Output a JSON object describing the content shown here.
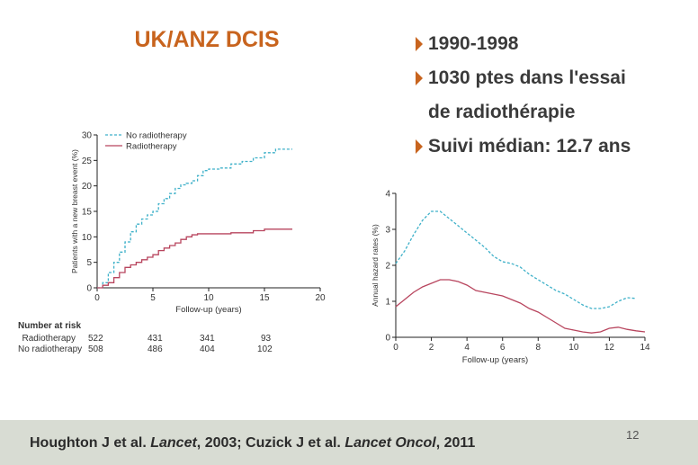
{
  "slide": {
    "title": "UK/ANZ DCIS",
    "bullets": [
      {
        "line1": "1990-1998",
        "line2": ""
      },
      {
        "line1": "1030 ptes dans l'essai",
        "line2": "de radiothérapie"
      },
      {
        "line1": "Suivi médian: 12.7 ans",
        "line2": ""
      }
    ],
    "accent_color": "#c8641e",
    "page_number": "12",
    "citation": {
      "part1": "Houghton J et al. ",
      "journal1": "Lancet",
      "part2": ", 2003; Cuzick J et al. ",
      "journal2": "Lancet Oncol",
      "part3": ", 2011"
    }
  },
  "risk_table": {
    "title": "Number at risk",
    "rows": [
      {
        "label": "Radiotherapy",
        "values": [
          "522",
          "431",
          "341",
          "93"
        ]
      },
      {
        "label": "No radiotherapy",
        "values": [
          "508",
          "486",
          "404",
          "102"
        ]
      }
    ]
  },
  "chart_data": [
    {
      "type": "line",
      "xlabel": "Follow-up (years)",
      "ylabel": "Patients with a new breast event (%)",
      "xlim": [
        0,
        20
      ],
      "ylim": [
        0,
        30
      ],
      "xticks": [
        "0",
        "5",
        "10",
        "15",
        "20"
      ],
      "yticks": [
        "0",
        "5",
        "10",
        "15",
        "20",
        "25",
        "30"
      ],
      "legend_position": "top-left",
      "series": [
        {
          "name": "No radiotherapy",
          "color": "#3fb1c9",
          "style": "dashed",
          "x": [
            0,
            0.5,
            1,
            1.5,
            2,
            2.5,
            3,
            3.5,
            4,
            4.5,
            5,
            5.5,
            6,
            6.5,
            7,
            7.5,
            8,
            8.5,
            9,
            9.5,
            10,
            11,
            12,
            13,
            14,
            15,
            16,
            17.5
          ],
          "y": [
            0,
            1,
            3,
            5,
            7,
            9,
            11,
            12.5,
            13.5,
            14.3,
            15,
            16.5,
            17.5,
            18.5,
            19.5,
            20.2,
            20.5,
            21,
            22,
            23,
            23.3,
            23.5,
            24.3,
            24.8,
            25.5,
            26.5,
            27.2,
            27.2
          ]
        },
        {
          "name": "Radiotherapy",
          "color": "#b8455e",
          "style": "solid",
          "x": [
            0,
            0.5,
            1,
            1.5,
            2,
            2.5,
            3,
            3.5,
            4,
            4.5,
            5,
            5.5,
            6,
            6.5,
            7,
            7.5,
            8,
            8.5,
            9,
            10,
            12,
            14,
            15,
            17.5
          ],
          "y": [
            0,
            0.5,
            1,
            2,
            3,
            4,
            4.5,
            5,
            5.5,
            6,
            6.5,
            7.3,
            7.8,
            8.3,
            8.8,
            9.5,
            10,
            10.4,
            10.6,
            10.6,
            10.8,
            11.2,
            11.5,
            11.5
          ]
        }
      ]
    },
    {
      "type": "line",
      "xlabel": "Follow-up (years)",
      "ylabel": "Annual hazard rates (%)",
      "xlim": [
        0,
        14
      ],
      "ylim": [
        0,
        4
      ],
      "xticks": [
        "0",
        "2",
        "4",
        "6",
        "8",
        "10",
        "12",
        "14"
      ],
      "yticks": [
        "0",
        "1",
        "2",
        "3",
        "4"
      ],
      "series": [
        {
          "color": "#3fb1c9",
          "style": "dashed",
          "x": [
            0,
            0.5,
            1,
            1.5,
            2,
            2.5,
            3,
            3.5,
            4,
            4.5,
            5,
            5.5,
            6,
            6.5,
            7,
            7.5,
            8,
            8.5,
            9,
            9.5,
            10,
            10.5,
            11,
            11.5,
            12,
            12.5,
            13,
            13.5
          ],
          "y": [
            2.05,
            2.4,
            2.85,
            3.25,
            3.5,
            3.5,
            3.3,
            3.1,
            2.9,
            2.7,
            2.5,
            2.25,
            2.1,
            2.05,
            1.95,
            1.75,
            1.6,
            1.45,
            1.3,
            1.2,
            1.05,
            0.9,
            0.8,
            0.8,
            0.85,
            1.0,
            1.1,
            1.08
          ]
        },
        {
          "color": "#b8455e",
          "style": "solid",
          "x": [
            0,
            0.5,
            1,
            1.5,
            2,
            2.5,
            3,
            3.5,
            4,
            4.5,
            5,
            5.5,
            6,
            6.5,
            7,
            7.5,
            8,
            8.5,
            9,
            9.5,
            10,
            10.5,
            11,
            11.5,
            12,
            12.5,
            13,
            13.5,
            14
          ],
          "y": [
            0.85,
            1.05,
            1.25,
            1.4,
            1.5,
            1.6,
            1.6,
            1.55,
            1.45,
            1.3,
            1.25,
            1.2,
            1.15,
            1.05,
            0.95,
            0.8,
            0.7,
            0.55,
            0.4,
            0.25,
            0.2,
            0.15,
            0.12,
            0.15,
            0.25,
            0.28,
            0.22,
            0.18,
            0.15
          ]
        }
      ]
    }
  ]
}
